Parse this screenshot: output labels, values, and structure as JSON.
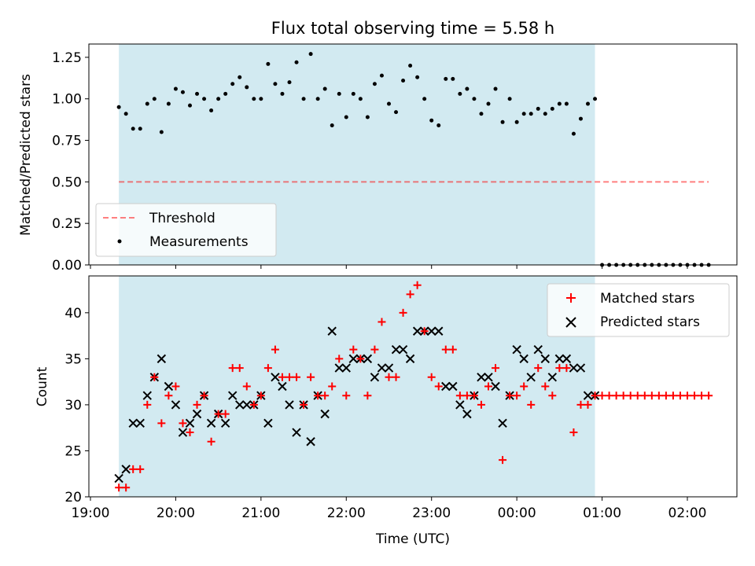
{
  "title": "Flux total observing time = 5.58 h",
  "colors": {
    "span": "#add8e6",
    "threshold": "#ff0000",
    "measurement": "#000000",
    "matched": "#ff0000",
    "predicted": "#000000"
  },
  "chart_data": [
    {
      "type": "scatter",
      "panel": "top",
      "ylabel": "Matched/Predicted stars",
      "ylim": [
        0.0,
        1.33
      ],
      "yticks": [
        0.0,
        0.25,
        0.5,
        0.75,
        1.0,
        1.25
      ],
      "ytick_labels": [
        "0.00",
        "0.25",
        "0.50",
        "0.75",
        "1.00",
        "1.25"
      ],
      "grid": false,
      "legend_position": "lower-left",
      "shaded_interval": [
        "19:20",
        "00:55"
      ],
      "threshold": {
        "name": "Threshold",
        "style": "dashed",
        "x": [
          "19:20",
          "02:15"
        ],
        "y": 0.5
      },
      "series": [
        {
          "name": "Measurements",
          "marker": "dot",
          "x": [
            "19:20",
            "19:25",
            "19:30",
            "19:35",
            "19:40",
            "19:45",
            "19:50",
            "19:55",
            "20:00",
            "20:05",
            "20:10",
            "20:15",
            "20:20",
            "20:25",
            "20:30",
            "20:35",
            "20:40",
            "20:45",
            "20:50",
            "20:55",
            "21:00",
            "21:05",
            "21:10",
            "21:15",
            "21:20",
            "21:25",
            "21:30",
            "21:35",
            "21:40",
            "21:45",
            "21:50",
            "21:55",
            "22:00",
            "22:05",
            "22:10",
            "22:15",
            "22:20",
            "22:25",
            "22:30",
            "22:35",
            "22:40",
            "22:45",
            "22:50",
            "22:55",
            "23:00",
            "23:05",
            "23:10",
            "23:15",
            "23:20",
            "23:25",
            "23:30",
            "23:35",
            "23:40",
            "23:45",
            "23:50",
            "23:55",
            "00:00",
            "00:05",
            "00:10",
            "00:15",
            "00:20",
            "00:25",
            "00:30",
            "00:35",
            "00:40",
            "00:45",
            "00:50",
            "00:55",
            "01:00",
            "01:05",
            "01:10",
            "01:15",
            "01:20",
            "01:25",
            "01:30",
            "01:35",
            "01:40",
            "01:45",
            "01:50",
            "01:55",
            "02:00",
            "02:05",
            "02:10",
            "02:15"
          ],
          "y": [
            0.95,
            0.91,
            0.82,
            0.82,
            0.97,
            1.0,
            0.8,
            0.97,
            1.06,
            1.04,
            0.96,
            1.03,
            1.0,
            0.93,
            1.0,
            1.03,
            1.09,
            1.13,
            1.07,
            1.0,
            1.0,
            1.21,
            1.09,
            1.03,
            1.1,
            1.22,
            1.0,
            1.27,
            1.0,
            1.06,
            0.84,
            1.03,
            0.89,
            1.03,
            1.0,
            0.89,
            1.09,
            1.14,
            0.97,
            0.92,
            1.11,
            1.2,
            1.13,
            1.0,
            0.87,
            0.84,
            1.12,
            1.12,
            1.03,
            1.06,
            1.0,
            0.91,
            0.97,
            1.06,
            0.86,
            1.0,
            0.86,
            0.91,
            0.91,
            0.94,
            0.91,
            0.94,
            0.97,
            0.97,
            0.79,
            0.88,
            0.97,
            1.0,
            0.0,
            0.0,
            0.0,
            0.0,
            0.0,
            0.0,
            0.0,
            0.0,
            0.0,
            0.0,
            0.0,
            0.0,
            0.0,
            0.0,
            0.0,
            0.0
          ]
        }
      ]
    },
    {
      "type": "scatter",
      "panel": "bottom",
      "xlabel": "Time (UTC)",
      "ylabel": "Count",
      "ylim": [
        20,
        44
      ],
      "yticks": [
        20,
        25,
        30,
        35,
        40
      ],
      "xticks": [
        "19:00",
        "20:00",
        "21:00",
        "22:00",
        "23:00",
        "00:00",
        "01:00",
        "02:00"
      ],
      "grid": false,
      "legend_position": "upper-right",
      "shaded_interval": [
        "19:20",
        "00:55"
      ],
      "series": [
        {
          "name": "Matched stars",
          "marker": "plus",
          "x": [
            "19:20",
            "19:25",
            "19:30",
            "19:35",
            "19:40",
            "19:45",
            "19:50",
            "19:55",
            "20:00",
            "20:05",
            "20:10",
            "20:15",
            "20:20",
            "20:25",
            "20:30",
            "20:35",
            "20:40",
            "20:45",
            "20:50",
            "20:55",
            "21:00",
            "21:05",
            "21:10",
            "21:15",
            "21:20",
            "21:25",
            "21:30",
            "21:35",
            "21:40",
            "21:45",
            "21:50",
            "21:55",
            "22:00",
            "22:05",
            "22:10",
            "22:15",
            "22:20",
            "22:25",
            "22:30",
            "22:35",
            "22:40",
            "22:45",
            "22:50",
            "22:55",
            "23:00",
            "23:05",
            "23:10",
            "23:15",
            "23:20",
            "23:25",
            "23:30",
            "23:35",
            "23:40",
            "23:45",
            "23:50",
            "23:55",
            "00:00",
            "00:05",
            "00:10",
            "00:15",
            "00:20",
            "00:25",
            "00:30",
            "00:35",
            "00:40",
            "00:45",
            "00:50",
            "00:55",
            "01:00",
            "01:05",
            "01:10",
            "01:15",
            "01:20",
            "01:25",
            "01:30",
            "01:35",
            "01:40",
            "01:45",
            "01:50",
            "01:55",
            "02:00",
            "02:05",
            "02:10",
            "02:15"
          ],
          "y": [
            21,
            21,
            23,
            23,
            30,
            33,
            28,
            31,
            32,
            28,
            27,
            30,
            31,
            26,
            29,
            29,
            34,
            34,
            32,
            30,
            31,
            34,
            36,
            33,
            33,
            33,
            30,
            33,
            31,
            31,
            32,
            35,
            31,
            36,
            35,
            31,
            36,
            39,
            33,
            33,
            40,
            42,
            43,
            38,
            33,
            32,
            36,
            36,
            31,
            31,
            31,
            30,
            32,
            34,
            24,
            31,
            31,
            32,
            30,
            34,
            32,
            31,
            34,
            34,
            27,
            30,
            30,
            31,
            31,
            31,
            31,
            31,
            31,
            31,
            31,
            31,
            31,
            31,
            31,
            31,
            31,
            31,
            31,
            31
          ]
        },
        {
          "name": "Predicted stars",
          "marker": "x",
          "x": [
            "19:20",
            "19:25",
            "19:30",
            "19:35",
            "19:40",
            "19:45",
            "19:50",
            "19:55",
            "20:00",
            "20:05",
            "20:10",
            "20:15",
            "20:20",
            "20:25",
            "20:30",
            "20:35",
            "20:40",
            "20:45",
            "20:50",
            "20:55",
            "21:00",
            "21:05",
            "21:10",
            "21:15",
            "21:20",
            "21:25",
            "21:30",
            "21:35",
            "21:40",
            "21:45",
            "21:50",
            "21:55",
            "22:00",
            "22:05",
            "22:10",
            "22:15",
            "22:20",
            "22:25",
            "22:30",
            "22:35",
            "22:40",
            "22:45",
            "22:50",
            "22:55",
            "23:00",
            "23:05",
            "23:10",
            "23:15",
            "23:20",
            "23:25",
            "23:30",
            "23:35",
            "23:40",
            "23:45",
            "23:50",
            "23:55",
            "00:00",
            "00:05",
            "00:10",
            "00:15",
            "00:20",
            "00:25",
            "00:30",
            "00:35",
            "00:40",
            "00:45",
            "00:50",
            "00:55"
          ],
          "y": [
            22,
            23,
            28,
            28,
            31,
            33,
            35,
            32,
            30,
            27,
            28,
            29,
            31,
            28,
            29,
            28,
            31,
            30,
            30,
            30,
            31,
            28,
            33,
            32,
            30,
            27,
            30,
            26,
            31,
            29,
            38,
            34,
            34,
            35,
            35,
            35,
            33,
            34,
            34,
            36,
            36,
            35,
            38,
            38,
            38,
            38,
            32,
            32,
            30,
            29,
            31,
            33,
            33,
            32,
            28,
            31,
            36,
            35,
            33,
            36,
            35,
            33,
            35,
            35,
            34,
            34,
            31,
            31
          ]
        }
      ]
    }
  ]
}
